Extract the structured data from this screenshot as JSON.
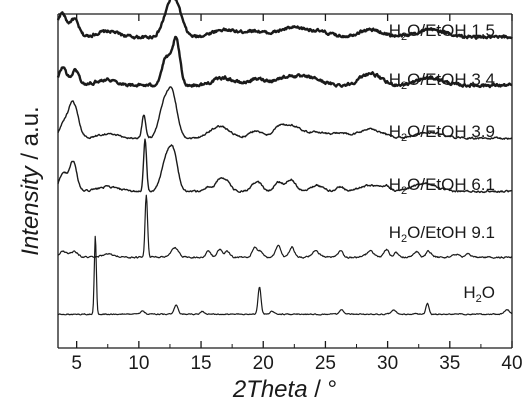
{
  "chart_data": {
    "type": "line",
    "title": "",
    "xlabel": {
      "italic": "2Theta",
      "rest": " / °"
    },
    "ylabel": {
      "italic": "Intensity",
      "rest": " / a.u."
    },
    "xlim": [
      3.5,
      40
    ],
    "xticks": [
      5,
      10,
      15,
      20,
      25,
      30,
      35,
      40
    ],
    "yticks_shown": false,
    "grid": false,
    "legend": "none",
    "line_color": "#1a1a1a",
    "series": [
      {
        "name": "H2O/EtOH 1.5",
        "label": {
          "a": "H",
          "sub": "2",
          "b": "O/EtOH 1.5"
        },
        "baseline": 0.9,
        "noise": 0.8,
        "lw": 2.4,
        "peaks": [
          [
            3.8,
            8,
            0.35
          ],
          [
            4.8,
            6,
            0.35
          ],
          [
            7.5,
            2,
            0.9
          ],
          [
            12.4,
            7,
            0.5
          ],
          [
            13.0,
            9,
            0.5
          ],
          [
            16.8,
            2.5,
            1.0
          ],
          [
            19.2,
            2,
            0.8
          ],
          [
            22.3,
            3,
            1.2
          ],
          [
            24.5,
            1.5,
            1.0
          ],
          [
            28.6,
            2.5,
            1.0
          ],
          [
            33.5,
            2.5,
            1.2
          ]
        ]
      },
      {
        "name": "H2O/EtOH 3.4",
        "label": {
          "a": "H",
          "sub": "2",
          "b": "O/EtOH 3.4"
        },
        "baseline": 0.9,
        "noise": 0.8,
        "lw": 2.4,
        "peaks": [
          [
            3.9,
            6,
            0.3
          ],
          [
            4.9,
            5,
            0.3
          ],
          [
            7.4,
            2,
            0.8
          ],
          [
            12.2,
            9,
            0.35
          ],
          [
            13.0,
            15,
            0.3
          ],
          [
            16.8,
            2.5,
            0.8
          ],
          [
            19.5,
            2,
            0.7
          ],
          [
            22.1,
            3,
            1.0
          ],
          [
            24.0,
            2,
            0.8
          ],
          [
            28.6,
            4,
            0.8
          ],
          [
            33.4,
            2.5,
            1.0
          ]
        ]
      },
      {
        "name": "H2O/EtOH 3.9",
        "label": {
          "a": "H",
          "sub": "2",
          "b": "O/EtOH 3.9"
        },
        "baseline": 0.9,
        "noise": 0.5,
        "lw": 1.4,
        "peaks": [
          [
            3.9,
            4,
            0.3
          ],
          [
            4.7,
            12,
            0.4
          ],
          [
            7.5,
            1.5,
            0.8
          ],
          [
            10.4,
            8,
            0.15
          ],
          [
            12.0,
            10,
            0.4
          ],
          [
            12.7,
            14,
            0.4
          ],
          [
            16.5,
            4,
            0.8
          ],
          [
            19.4,
            2.5,
            0.5
          ],
          [
            21.2,
            2.5,
            0.5
          ],
          [
            22.3,
            4,
            0.8
          ],
          [
            24.5,
            2,
            0.8
          ],
          [
            26.2,
            1.5,
            0.5
          ],
          [
            28.6,
            3,
            1.0
          ],
          [
            33.4,
            2,
            1.0
          ]
        ]
      },
      {
        "name": "H2O/EtOH 6.1",
        "label": {
          "a": "H",
          "sub": "2",
          "b": "O/EtOH 6.1"
        },
        "baseline": 0.9,
        "noise": 0.5,
        "lw": 1.4,
        "peaks": [
          [
            3.9,
            6,
            0.3
          ],
          [
            4.7,
            10,
            0.3
          ],
          [
            7.5,
            1.5,
            0.8
          ],
          [
            10.5,
            17,
            0.12
          ],
          [
            12.2,
            10,
            0.4
          ],
          [
            12.8,
            11,
            0.35
          ],
          [
            15.6,
            1.5,
            0.3
          ],
          [
            16.5,
            4,
            0.3
          ],
          [
            17.1,
            3,
            0.3
          ],
          [
            19.3,
            2,
            0.3
          ],
          [
            19.7,
            2,
            0.3
          ],
          [
            21.2,
            3,
            0.3
          ],
          [
            22.2,
            4,
            0.4
          ],
          [
            24.3,
            2,
            0.5
          ],
          [
            26.2,
            1.5,
            0.3
          ],
          [
            28.6,
            2,
            0.8
          ],
          [
            29.9,
            1.5,
            0.3
          ],
          [
            32.5,
            1.5,
            0.8
          ],
          [
            33.4,
            1.5,
            0.8
          ]
        ]
      },
      {
        "name": "H2O/EtOH 9.1",
        "label": {
          "a": "H",
          "sub": "2",
          "b": "O/EtOH 9.1"
        },
        "baseline": 0.9,
        "noise": 0.45,
        "lw": 1.2,
        "peaks": [
          [
            3.9,
            2,
            0.3
          ],
          [
            4.8,
            2,
            0.3
          ],
          [
            7.5,
            1,
            0.5
          ],
          [
            10.6,
            21,
            0.1
          ],
          [
            12.9,
            3,
            0.3
          ],
          [
            15.6,
            2,
            0.2
          ],
          [
            16.5,
            2.5,
            0.2
          ],
          [
            17.1,
            2,
            0.2
          ],
          [
            19.3,
            3,
            0.2
          ],
          [
            19.8,
            2,
            0.2
          ],
          [
            21.2,
            4,
            0.2
          ],
          [
            22.3,
            3.5,
            0.2
          ],
          [
            24.2,
            2,
            0.3
          ],
          [
            26.2,
            2,
            0.2
          ],
          [
            28.6,
            2,
            0.3
          ],
          [
            29.9,
            2.5,
            0.2
          ],
          [
            30.7,
            1.5,
            0.2
          ],
          [
            32.3,
            2,
            0.2
          ],
          [
            33.3,
            2,
            0.2
          ],
          [
            35.5,
            1,
            0.3
          ],
          [
            36.5,
            1,
            0.2
          ]
        ]
      },
      {
        "name": "H2O",
        "label": {
          "a": "H",
          "sub": "2",
          "b": "O"
        },
        "baseline": 0.6,
        "noise": 0.3,
        "lw": 1.2,
        "peaks": [
          [
            6.5,
            26,
            0.08
          ],
          [
            10.3,
            1,
            0.15
          ],
          [
            13.0,
            3,
            0.15
          ],
          [
            15.1,
            1,
            0.15
          ],
          [
            19.7,
            9,
            0.12
          ],
          [
            20.7,
            1,
            0.15
          ],
          [
            26.3,
            1.5,
            0.15
          ],
          [
            30.5,
            1.5,
            0.2
          ],
          [
            33.2,
            3.5,
            0.12
          ],
          [
            39.6,
            1.5,
            0.2
          ]
        ]
      }
    ]
  }
}
